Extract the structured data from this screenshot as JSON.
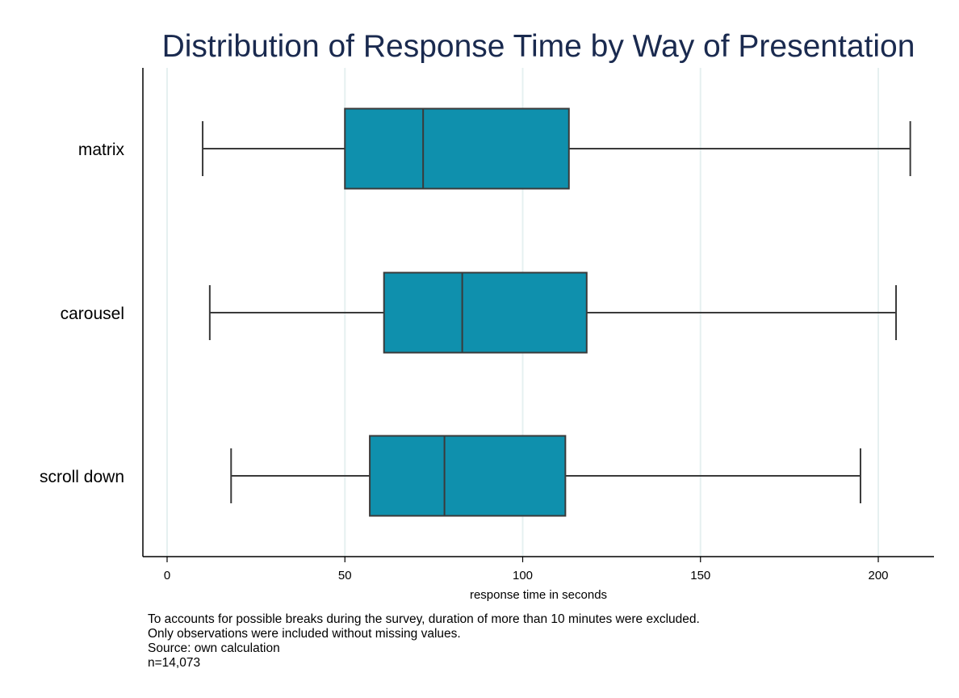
{
  "chart_data": {
    "type": "boxplot",
    "orientation": "horizontal",
    "title": "Distribution of Response Time by Way of Presentation",
    "xlabel": "response time in seconds",
    "xlim": [
      0,
      215
    ],
    "xticks": [
      0,
      50,
      100,
      150,
      200
    ],
    "grid": true,
    "box_color": "#0f90ad",
    "line_color": "#3a3a3a",
    "categories": [
      "matrix",
      "carousel",
      "scroll down"
    ],
    "boxes": [
      {
        "label": "matrix",
        "whisker_low": 10,
        "q1": 50,
        "median": 72,
        "q3": 113,
        "whisker_high": 209
      },
      {
        "label": "carousel",
        "whisker_low": 12,
        "q1": 61,
        "median": 83,
        "q3": 118,
        "whisker_high": 205
      },
      {
        "label": "scroll down",
        "whisker_low": 18,
        "q1": 57,
        "median": 78,
        "q3": 112,
        "whisker_high": 195
      }
    ],
    "notes": [
      "To accounts for possible breaks during the survey, duration of more than 10 minutes were excluded.",
      "Only observations were included without missing values.",
      "Source: own calculation",
      "n=14,073"
    ]
  }
}
